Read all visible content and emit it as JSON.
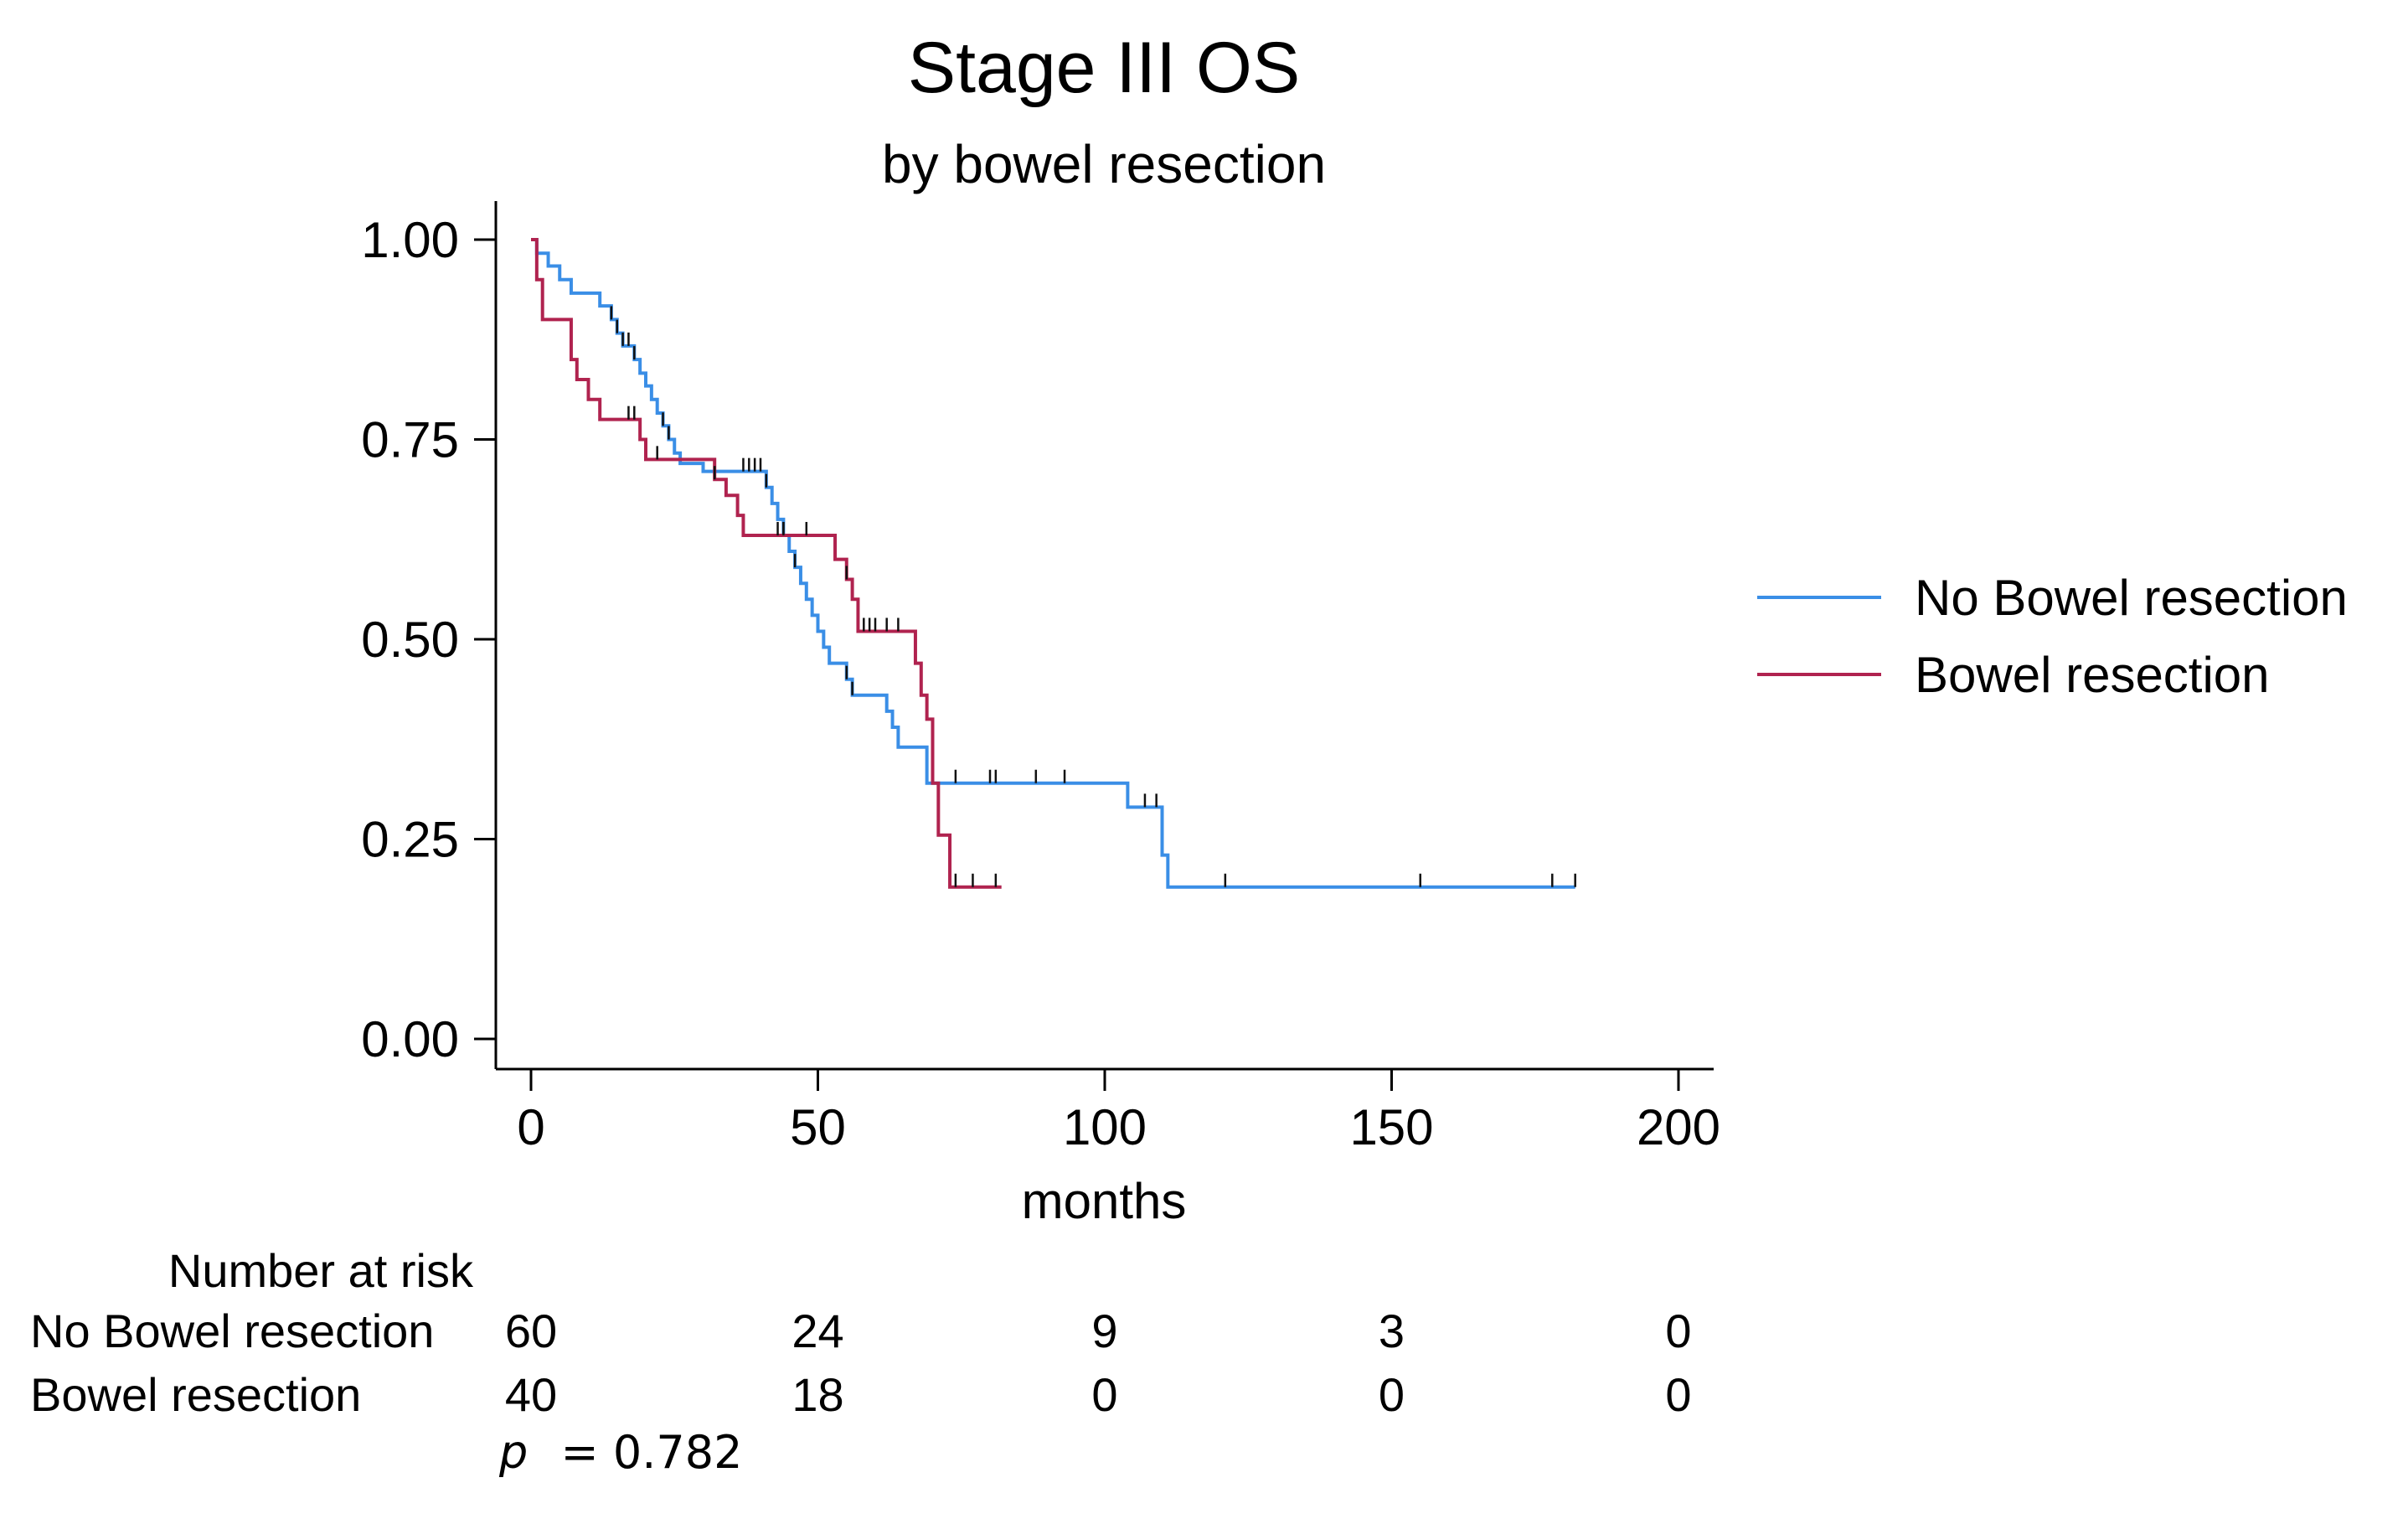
{
  "chart_data": {
    "type": "line",
    "subtype": "kaplan-meier",
    "title": "Stage III OS",
    "subtitle": "by bowel resection",
    "xlabel": "months",
    "ylabel": "",
    "xlim": [
      0,
      200
    ],
    "ylim": [
      0,
      1
    ],
    "xticks": [
      0,
      50,
      100,
      150,
      200
    ],
    "yticks": [
      0,
      0.25,
      0.5,
      0.75,
      1.0
    ],
    "ytick_labels": [
      "0.00",
      "0.25",
      "0.50",
      "0.75",
      "1.00"
    ],
    "grid": false,
    "legend_position": "right",
    "series": [
      {
        "name": "No Bowel resection",
        "color": "#3a8ee6",
        "steps": [
          [
            0,
            1.0
          ],
          [
            1,
            0.983
          ],
          [
            3,
            0.967
          ],
          [
            5,
            0.95
          ],
          [
            7,
            0.933
          ],
          [
            12,
            0.917
          ],
          [
            14,
            0.9
          ],
          [
            15,
            0.883
          ],
          [
            16,
            0.867
          ],
          [
            18,
            0.85
          ],
          [
            19,
            0.833
          ],
          [
            20,
            0.817
          ],
          [
            21,
            0.8
          ],
          [
            22,
            0.783
          ],
          [
            23,
            0.767
          ],
          [
            24,
            0.75
          ],
          [
            25,
            0.733
          ],
          [
            26,
            0.72
          ],
          [
            30,
            0.71
          ],
          [
            40,
            0.71
          ],
          [
            41,
            0.69
          ],
          [
            42,
            0.67
          ],
          [
            43,
            0.65
          ],
          [
            44,
            0.63
          ],
          [
            45,
            0.61
          ],
          [
            46,
            0.59
          ],
          [
            47,
            0.57
          ],
          [
            48,
            0.55
          ],
          [
            49,
            0.53
          ],
          [
            50,
            0.51
          ],
          [
            51,
            0.49
          ],
          [
            52,
            0.47
          ],
          [
            55,
            0.45
          ],
          [
            56,
            0.43
          ],
          [
            62,
            0.41
          ],
          [
            63,
            0.39
          ],
          [
            64,
            0.365
          ],
          [
            69,
            0.32
          ],
          [
            104,
            0.29
          ],
          [
            110,
            0.23
          ],
          [
            111,
            0.19
          ],
          [
            182,
            0.19
          ]
        ],
        "censor_times": [
          14,
          15,
          16,
          17,
          18,
          23,
          24,
          37,
          38,
          39,
          40,
          41,
          44,
          46,
          55,
          56,
          74,
          80,
          81,
          88,
          93,
          107,
          109,
          121,
          155,
          178,
          182
        ]
      },
      {
        "name": "Bowel resection",
        "color": "#b0234f",
        "steps": [
          [
            0,
            1.0
          ],
          [
            1,
            0.95
          ],
          [
            2,
            0.9
          ],
          [
            7,
            0.85
          ],
          [
            8,
            0.825
          ],
          [
            10,
            0.8
          ],
          [
            12,
            0.775
          ],
          [
            19,
            0.75
          ],
          [
            20,
            0.725
          ],
          [
            32,
            0.7
          ],
          [
            34,
            0.68
          ],
          [
            36,
            0.655
          ],
          [
            37,
            0.63
          ],
          [
            53,
            0.6
          ],
          [
            55,
            0.575
          ],
          [
            56,
            0.55
          ],
          [
            57,
            0.51
          ],
          [
            67,
            0.47
          ],
          [
            68,
            0.43
          ],
          [
            69,
            0.4
          ],
          [
            70,
            0.32
          ],
          [
            71,
            0.255
          ],
          [
            73,
            0.19
          ],
          [
            82,
            0.19
          ]
        ],
        "censor_times": [
          17,
          18,
          22,
          32,
          43,
          44,
          48,
          55,
          58,
          59,
          60,
          62,
          64,
          74,
          77,
          81
        ]
      }
    ],
    "risk_table": {
      "title": "Number at risk",
      "times": [
        0,
        50,
        100,
        150,
        200
      ],
      "rows": [
        {
          "label": "No Bowel resection",
          "values": [
            60,
            24,
            9,
            3,
            0
          ]
        },
        {
          "label": "Bowel resection",
          "values": [
            40,
            18,
            0,
            0,
            0
          ]
        }
      ]
    },
    "annotation": {
      "p_label": "p",
      "p_value": "= 0.782"
    }
  }
}
